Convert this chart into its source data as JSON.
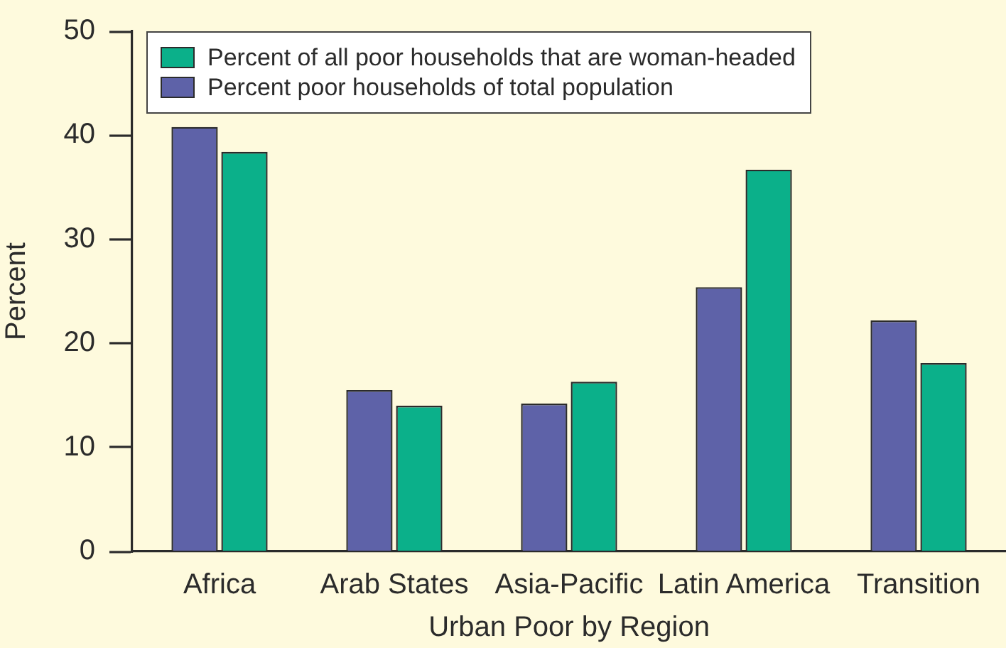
{
  "chart_data": {
    "type": "bar",
    "xlabel": "Urban Poor by Region",
    "ylabel": "Percent",
    "categories": [
      "Africa",
      "Arab States",
      "Asia-Pacific",
      "Latin America",
      "Transition"
    ],
    "series": [
      {
        "name": "Percent poor households of total population",
        "color": "#5e62a8",
        "values": [
          40.8,
          15.5,
          14.2,
          25.4,
          22.2
        ]
      },
      {
        "name": "Percent of all poor households that are woman-headed",
        "color": "#0bb08a",
        "values": [
          38.4,
          14.0,
          16.3,
          36.7,
          18.1
        ]
      }
    ],
    "ylim": [
      0,
      50
    ],
    "yticks": [
      0,
      10,
      20,
      30,
      40,
      50
    ],
    "grid": false,
    "legend": "top left"
  }
}
